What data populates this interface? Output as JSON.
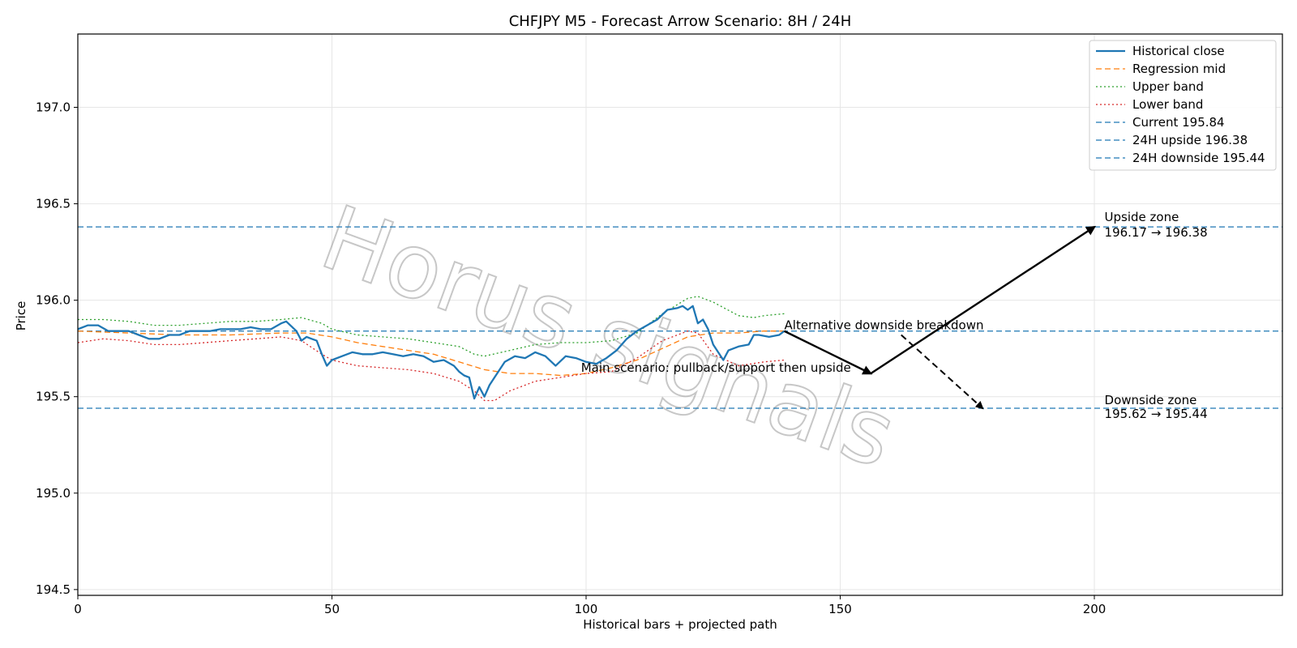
{
  "chart_data": {
    "type": "line",
    "title": "CHFJPY M5 - Forecast Arrow Scenario: 8H / 24H",
    "xlabel": "Historical bars + projected path",
    "ylabel": "Price",
    "xlim": [
      0,
      237
    ],
    "ylim": [
      194.47,
      197.38
    ],
    "xticks": [
      0,
      50,
      100,
      150,
      200
    ],
    "yticks": [
      194.5,
      195.0,
      195.5,
      196.0,
      196.5,
      197.0
    ],
    "ytick_labels": [
      "194.5",
      "195.0",
      "195.5",
      "196.0",
      "196.5",
      "197.0"
    ],
    "grid": true,
    "legend_position": "top-right",
    "series": [
      {
        "name": "Historical close",
        "style": "solid",
        "color": "#1f77b4",
        "x": [
          0,
          2,
          4,
          6,
          8,
          10,
          12,
          14,
          16,
          18,
          20,
          22,
          24,
          26,
          28,
          30,
          32,
          34,
          36,
          38,
          40,
          41,
          43,
          44,
          45,
          46,
          47,
          48,
          49,
          50,
          52,
          54,
          56,
          58,
          60,
          62,
          64,
          66,
          68,
          70,
          72,
          74,
          75,
          76,
          77,
          78,
          79,
          80,
          81,
          82,
          84,
          86,
          88,
          90,
          92,
          94,
          96,
          98,
          100,
          102,
          104,
          106,
          108,
          110,
          112,
          114,
          116,
          118,
          119,
          120,
          121,
          122,
          123,
          124,
          125,
          126,
          127,
          128,
          130,
          132,
          133,
          134,
          136,
          138,
          139
        ],
        "y": [
          195.85,
          195.87,
          195.87,
          195.84,
          195.84,
          195.84,
          195.82,
          195.8,
          195.8,
          195.82,
          195.82,
          195.84,
          195.84,
          195.84,
          195.85,
          195.85,
          195.85,
          195.86,
          195.85,
          195.85,
          195.88,
          195.89,
          195.84,
          195.79,
          195.81,
          195.8,
          195.79,
          195.72,
          195.66,
          195.69,
          195.71,
          195.73,
          195.72,
          195.72,
          195.73,
          195.72,
          195.71,
          195.72,
          195.71,
          195.68,
          195.69,
          195.66,
          195.63,
          195.61,
          195.6,
          195.49,
          195.55,
          195.5,
          195.56,
          195.6,
          195.68,
          195.71,
          195.7,
          195.73,
          195.71,
          195.66,
          195.71,
          195.7,
          195.68,
          195.67,
          195.7,
          195.74,
          195.8,
          195.84,
          195.87,
          195.9,
          195.95,
          195.96,
          195.97,
          195.95,
          195.97,
          195.88,
          195.9,
          195.85,
          195.77,
          195.73,
          195.69,
          195.74,
          195.76,
          195.77,
          195.82,
          195.82,
          195.81,
          195.82,
          195.84
        ]
      },
      {
        "name": "Regression mid",
        "style": "dashed",
        "color": "#ff7f0e",
        "x": [
          0,
          10,
          20,
          30,
          40,
          45,
          50,
          55,
          60,
          65,
          70,
          75,
          80,
          85,
          90,
          95,
          100,
          105,
          110,
          115,
          120,
          125,
          130,
          135,
          139
        ],
        "y": [
          195.84,
          195.83,
          195.82,
          195.82,
          195.83,
          195.83,
          195.81,
          195.78,
          195.76,
          195.74,
          195.72,
          195.68,
          195.64,
          195.62,
          195.62,
          195.61,
          195.62,
          195.65,
          195.69,
          195.75,
          195.81,
          195.83,
          195.83,
          195.84,
          195.84
        ]
      },
      {
        "name": "Upper band",
        "style": "dotted",
        "color": "#2ca02c",
        "x": [
          0,
          5,
          10,
          15,
          20,
          25,
          30,
          35,
          40,
          44,
          48,
          50,
          55,
          60,
          65,
          70,
          75,
          78,
          80,
          85,
          90,
          95,
          100,
          105,
          110,
          115,
          120,
          122,
          125,
          130,
          133,
          135,
          139
        ],
        "y": [
          195.9,
          195.9,
          195.89,
          195.87,
          195.87,
          195.88,
          195.89,
          195.89,
          195.9,
          195.91,
          195.88,
          195.85,
          195.82,
          195.81,
          195.8,
          195.78,
          195.76,
          195.72,
          195.71,
          195.74,
          195.77,
          195.78,
          195.78,
          195.79,
          195.83,
          195.93,
          196.01,
          196.02,
          195.99,
          195.92,
          195.91,
          195.92,
          195.93
        ]
      },
      {
        "name": "Lower band",
        "style": "dotted",
        "color": "#d62728",
        "x": [
          0,
          5,
          10,
          15,
          20,
          25,
          30,
          35,
          40,
          44,
          48,
          50,
          55,
          60,
          65,
          70,
          75,
          78,
          80,
          82,
          85,
          90,
          95,
          100,
          105,
          110,
          115,
          120,
          122,
          125,
          130,
          135,
          139
        ],
        "y": [
          195.78,
          195.8,
          195.79,
          195.77,
          195.77,
          195.78,
          195.79,
          195.8,
          195.81,
          195.79,
          195.72,
          195.69,
          195.66,
          195.65,
          195.64,
          195.62,
          195.58,
          195.53,
          195.48,
          195.48,
          195.53,
          195.58,
          195.6,
          195.62,
          195.63,
          195.7,
          195.79,
          195.84,
          195.83,
          195.72,
          195.66,
          195.68,
          195.69
        ]
      }
    ],
    "hlines": [
      {
        "name": "Current 195.84",
        "y": 195.84,
        "color": "#1f77b4",
        "style": "dashed"
      },
      {
        "name": "24H upside 196.38",
        "y": 196.38,
        "color": "#1f77b4",
        "style": "dashed"
      },
      {
        "name": "24H downside 195.44",
        "y": 195.44,
        "color": "#1f77b4",
        "style": "dashed"
      }
    ],
    "arrows": [
      {
        "from": [
          139,
          195.84
        ],
        "to": [
          156,
          195.62
        ],
        "style": "solid"
      },
      {
        "from": [
          156,
          195.62
        ],
        "to": [
          200,
          196.38
        ],
        "style": "solid"
      },
      {
        "from": [
          162,
          195.82
        ],
        "to": [
          178,
          195.44
        ],
        "style": "dashed"
      }
    ],
    "annotations": [
      {
        "text": "Main scenario: pullback/support then upside",
        "x": 99,
        "y": 195.63
      },
      {
        "text": "Alternative downside breakdown",
        "x": 139,
        "y": 195.85
      },
      {
        "text": "Upside zone",
        "x": 202,
        "y": 196.41
      },
      {
        "text": "196.17 → 196.38",
        "x": 202,
        "y": 196.33
      },
      {
        "text": "Downside zone",
        "x": 202,
        "y": 195.46
      },
      {
        "text": "195.62 → 195.44",
        "x": 202,
        "y": 195.39
      }
    ]
  },
  "watermark": "Horus signals"
}
